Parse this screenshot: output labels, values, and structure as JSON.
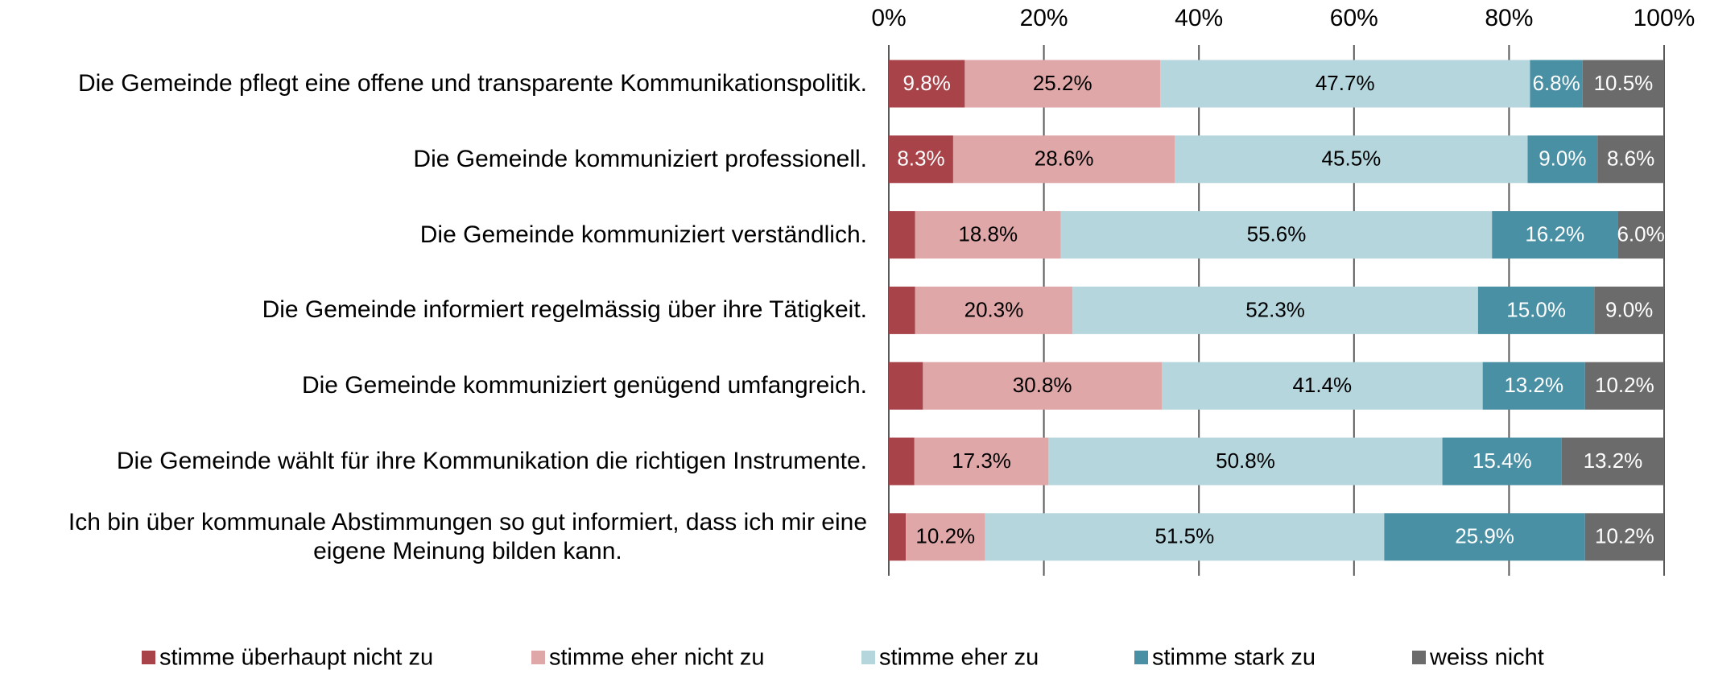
{
  "chart_data": {
    "type": "stacked_barh",
    "categories": [
      "Die Gemeinde pflegt eine offene und transparente Kommunikationspolitik.",
      "Die Gemeinde kommuniziert professionell.",
      "Die Gemeinde kommuniziert verständlich.",
      "Die Gemeinde informiert regelmässig über ihre Tätigkeit.",
      "Die Gemeinde kommuniziert genügend umfangreich.",
      "Die Gemeinde wählt für ihre Kommunikation die richtigen Instrumente.",
      "Ich bin über kommunale Abstimmungen so gut informiert, dass ich mir eine\neigene Meinung bilden kann."
    ],
    "series": [
      {
        "name": "stimme überhaupt nicht zu",
        "color": "#a8434a",
        "label_color": "#ffffff",
        "values": [
          9.8,
          8.3,
          3.4,
          3.4,
          4.4,
          3.3,
          2.2
        ],
        "value_labels": [
          "9.8%",
          "8.3%",
          null,
          null,
          null,
          null,
          null
        ]
      },
      {
        "name": "stimme eher nicht zu",
        "color": "#dfa7a8",
        "label_color": "#000000",
        "values": [
          25.2,
          28.6,
          18.8,
          20.3,
          30.8,
          17.3,
          10.2
        ],
        "value_labels": [
          "25.2%",
          "28.6%",
          "18.8%",
          "20.3%",
          "30.8%",
          "17.3%",
          "10.2%"
        ]
      },
      {
        "name": "stimme eher zu",
        "color": "#b5d6dd",
        "label_color": "#000000",
        "values": [
          47.7,
          45.5,
          55.6,
          52.3,
          41.4,
          50.8,
          51.5
        ],
        "value_labels": [
          "47.7%",
          "45.5%",
          "55.6%",
          "52.3%",
          "41.4%",
          "50.8%",
          "51.5%"
        ]
      },
      {
        "name": "stimme stark zu",
        "color": "#4a90a4",
        "label_color": "#ffffff",
        "values": [
          6.8,
          9.0,
          16.2,
          15.0,
          13.2,
          15.4,
          25.9
        ],
        "value_labels": [
          "6.8%",
          "9.0%",
          "16.2%",
          "15.0%",
          "13.2%",
          "15.4%",
          "25.9%"
        ]
      },
      {
        "name": "weiss nicht",
        "color": "#6b6b6b",
        "label_color": "#ffffff",
        "values": [
          10.5,
          8.6,
          6.0,
          9.0,
          10.2,
          13.2,
          10.2
        ],
        "value_labels": [
          "10.5%",
          "8.6%",
          "6.0%",
          "9.0%",
          "10.2%",
          "13.2%",
          "10.2%"
        ]
      }
    ],
    "xlim": [
      0,
      100
    ],
    "xticks": [
      {
        "value": 0,
        "label": "0%"
      },
      {
        "value": 20,
        "label": "20%"
      },
      {
        "value": 40,
        "label": "40%"
      },
      {
        "value": 60,
        "label": "60%"
      },
      {
        "value": 80,
        "label": "80%"
      },
      {
        "value": 100,
        "label": "100%"
      }
    ],
    "grid": true,
    "legend": "bottom"
  }
}
